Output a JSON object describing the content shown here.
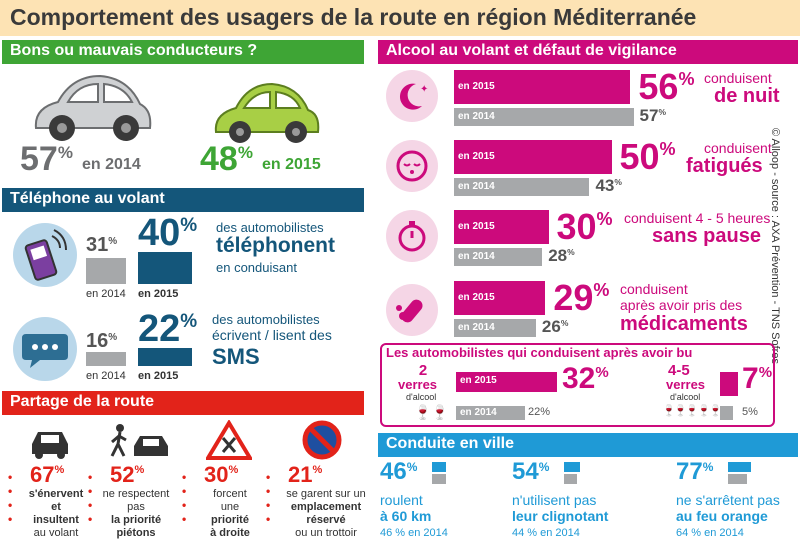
{
  "title": "Comportement des usagers de la route en région Méditerranée",
  "credit": "© Alloop - source : AXA Prévention - TNS Sofres",
  "sections": {
    "drivers": "Bons ou mauvais conducteurs ?",
    "phone": "Téléphone au volant",
    "share": "Partage de la route",
    "alcohol": "Alcool au volant et défaut de vigilance",
    "city": "Conduite en ville"
  },
  "drivers": {
    "y2014": {
      "value": "57",
      "label": "en 2014"
    },
    "y2015": {
      "value": "48",
      "label": "en 2015"
    }
  },
  "phone": {
    "call": {
      "v2014": "31",
      "v2015": "40",
      "text1": "des automobilistes",
      "text2": "téléphonent",
      "text3": "en conduisant"
    },
    "sms": {
      "v2014": "16",
      "v2015": "22",
      "text1": "des automobilistes",
      "text2": "écrivent / lisent des",
      "text3": "SMS"
    },
    "label2014": "en 2014",
    "label2015": "en 2015"
  },
  "share": [
    {
      "value": "67",
      "lines": [
        "s'énervent",
        "et",
        "insultent",
        "au volant"
      ]
    },
    {
      "value": "52",
      "lines": [
        "ne respectent",
        "pas",
        "la priorité",
        "piétons"
      ]
    },
    {
      "value": "30",
      "lines": [
        "forcent",
        "une",
        "priorité",
        "à droite"
      ]
    },
    {
      "value": "21",
      "lines": [
        "se garent sur un",
        "emplacement",
        "réservé",
        "ou un trottoir"
      ]
    }
  ],
  "alcohol": {
    "label2015": "en 2015",
    "label2014": "en 2014",
    "rows": [
      {
        "v2015": "56",
        "v2014": "57",
        "desc1": "conduisent",
        "desc2": "de nuit"
      },
      {
        "v2015": "50",
        "v2014": "43",
        "desc1": "conduisent",
        "desc2": "fatigués"
      },
      {
        "v2015": "30",
        "v2014": "28",
        "desc1": "conduisent 4 - 5 heures",
        "desc2": "sans pause"
      },
      {
        "v2015": "29",
        "v2014": "26",
        "desc1": "conduisent",
        "desc2": "après avoir pris des",
        "desc3": "médicaments"
      }
    ],
    "drink": {
      "title": "Les automobilistes qui conduisent après avoir bu",
      "a": {
        "qty": "2",
        "unit": "verres",
        "sub": "d'alcool",
        "v2015": "32",
        "v2014": "22"
      },
      "b": {
        "qty": "4-5",
        "unit": "verres",
        "sub": "d'alcool",
        "v2015": "7",
        "v2014": "5"
      }
    }
  },
  "city": [
    {
      "value": "46",
      "line1": "roulent",
      "line2": "à 60 km",
      "prev": "46 % en 2014"
    },
    {
      "value": "54",
      "line1": "n'utilisent pas",
      "line2": "leur clignotant",
      "prev": "44 % en 2014"
    },
    {
      "value": "77",
      "line1": "ne s'arrêtent pas",
      "line2": "au feu orange",
      "prev": "64 % en 2014"
    }
  ],
  "chart_data": [
    {
      "type": "bar",
      "title": "Bons ou mauvais conducteurs ?",
      "categories": [
        "en 2014",
        "en 2015"
      ],
      "values": [
        57,
        48
      ]
    },
    {
      "type": "bar",
      "title": "Téléphone au volant",
      "categories": [
        "téléphonent",
        "écrivent / lisent des SMS"
      ],
      "series": [
        {
          "name": "en 2014",
          "values": [
            31,
            16
          ]
        },
        {
          "name": "en 2015",
          "values": [
            40,
            22
          ]
        }
      ]
    },
    {
      "type": "bar",
      "title": "Partage de la route",
      "categories": [
        "s'énervent et insultent au volant",
        "ne respectent pas la priorité piétons",
        "forcent une priorité à droite",
        "se garent sur un emplacement réservé ou un trottoir"
      ],
      "values": [
        67,
        52,
        30,
        21
      ]
    },
    {
      "type": "bar",
      "title": "Alcool au volant et défaut de vigilance",
      "categories": [
        "de nuit",
        "fatigués",
        "sans pause",
        "médicaments"
      ],
      "series": [
        {
          "name": "en 2015",
          "values": [
            56,
            50,
            30,
            29
          ]
        },
        {
          "name": "en 2014",
          "values": [
            57,
            43,
            28,
            26
          ]
        }
      ]
    },
    {
      "type": "bar",
      "title": "Les automobilistes qui conduisent après avoir bu",
      "categories": [
        "2 verres d'alcool",
        "4-5 verres d'alcool"
      ],
      "series": [
        {
          "name": "en 2015",
          "values": [
            32,
            7
          ]
        },
        {
          "name": "en 2014",
          "values": [
            22,
            5
          ]
        }
      ]
    },
    {
      "type": "bar",
      "title": "Conduite en ville",
      "categories": [
        "roulent à 60 km",
        "n'utilisent pas leur clignotant",
        "ne s'arrêtent pas au feu orange"
      ],
      "series": [
        {
          "name": "2015",
          "values": [
            46,
            54,
            77
          ]
        },
        {
          "name": "2014",
          "values": [
            46,
            44,
            64
          ]
        }
      ]
    }
  ]
}
